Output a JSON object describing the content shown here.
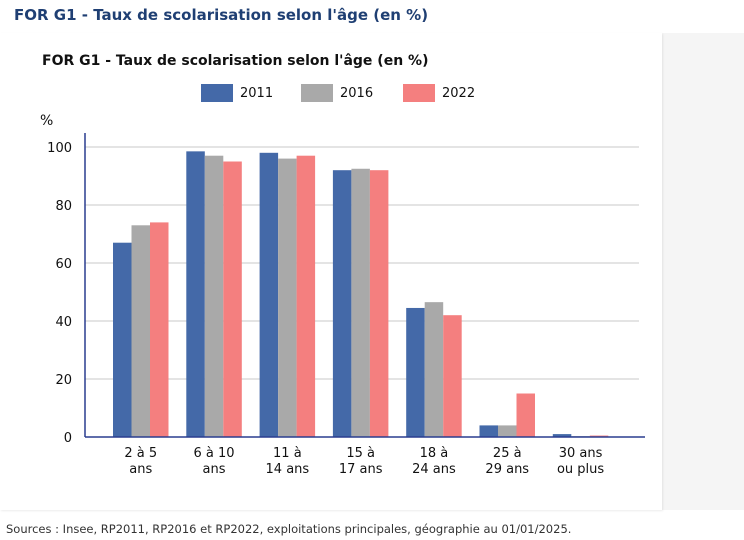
{
  "page_heading": "FOR G1 - Taux de scolarisation selon l'âge (en %)",
  "source": "Sources : Insee, RP2011, RP2016 et RP2022, exploitations principales, géographie au 01/01/2025.",
  "chart_data": {
    "type": "bar",
    "title": "FOR G1 - Taux de scolarisation selon l'âge (en %)",
    "ylabel": "%",
    "xlabel": "",
    "ylim": [
      0,
      100
    ],
    "yticks": [
      0,
      20,
      40,
      60,
      80,
      100
    ],
    "grid": true,
    "legend_position": "top",
    "categories": [
      [
        "2 à 5",
        "ans"
      ],
      [
        "6 à 10",
        "ans"
      ],
      [
        "11 à",
        "14 ans"
      ],
      [
        "15 à",
        "17 ans"
      ],
      [
        "18 à",
        "24 ans"
      ],
      [
        "25 à",
        "29 ans"
      ],
      [
        "30 ans",
        "ou plus"
      ]
    ],
    "series": [
      {
        "name": "2011",
        "color": "#4469a8",
        "values": [
          67,
          98.5,
          98,
          92,
          44.5,
          4,
          1
        ]
      },
      {
        "name": "2016",
        "color": "#a9a9a9",
        "values": [
          73,
          97,
          96,
          92.5,
          46.5,
          4,
          0.3
        ]
      },
      {
        "name": "2022",
        "color": "#f47f7f",
        "values": [
          74,
          95,
          97,
          92,
          42,
          15,
          0.5
        ]
      }
    ]
  }
}
